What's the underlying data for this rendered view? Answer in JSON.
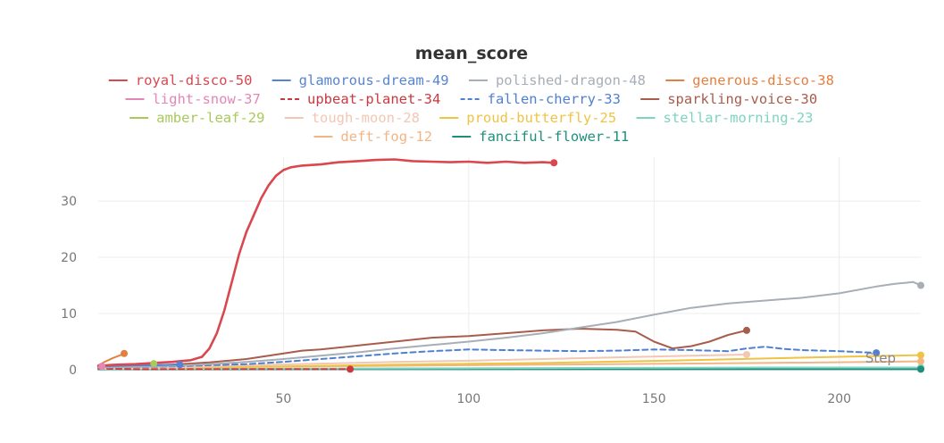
{
  "chart_data": {
    "type": "line",
    "title": "mean_score",
    "xlabel": "Step",
    "ylabel": "",
    "xlim": [
      0,
      222
    ],
    "ylim": [
      0,
      37
    ],
    "x_ticks": [
      50,
      100,
      150,
      200
    ],
    "y_ticks": [
      0,
      10,
      20,
      30
    ],
    "grid": true,
    "legend_position": "top",
    "series": [
      {
        "name": "royal-disco-50",
        "color": "#d9474f",
        "dash": "solid",
        "x": [
          0,
          5,
          10,
          15,
          20,
          25,
          28,
          30,
          32,
          34,
          36,
          38,
          40,
          42,
          44,
          46,
          48,
          50,
          52,
          55,
          60,
          65,
          70,
          75,
          80,
          85,
          90,
          95,
          100,
          105,
          110,
          115,
          120,
          123
        ],
        "y": [
          0.7,
          0.9,
          1.0,
          1.2,
          1.4,
          1.7,
          2.3,
          3.8,
          6.5,
          10.5,
          15.5,
          20.5,
          24.5,
          27.5,
          30.5,
          32.8,
          34.5,
          35.5,
          36.0,
          36.3,
          36.5,
          36.9,
          37.1,
          37.3,
          37.4,
          37.1,
          37.0,
          36.9,
          37.0,
          36.8,
          37.0,
          36.8,
          36.9,
          36.8
        ]
      },
      {
        "name": "glamorous-dream-49",
        "color": "#5584d4",
        "dash": "solid",
        "x": [
          0,
          5,
          10,
          15,
          20,
          22
        ],
        "y": [
          0.6,
          0.7,
          0.8,
          0.8,
          0.9,
          0.9
        ]
      },
      {
        "name": "polished-dragon-48",
        "color": "#a7aeb6",
        "dash": "solid",
        "x": [
          0,
          10,
          20,
          30,
          40,
          50,
          60,
          70,
          80,
          90,
          100,
          110,
          120,
          130,
          140,
          150,
          160,
          170,
          180,
          190,
          200,
          210,
          215,
          220,
          222
        ],
        "y": [
          0.4,
          0.5,
          0.7,
          1.0,
          1.4,
          1.9,
          2.5,
          3.1,
          3.8,
          4.4,
          5.0,
          5.7,
          6.5,
          7.5,
          8.5,
          9.8,
          11.0,
          11.8,
          12.3,
          12.8,
          13.6,
          14.8,
          15.3,
          15.6,
          15.0
        ]
      },
      {
        "name": "generous-disco-38",
        "color": "#e57f3f",
        "dash": "solid",
        "x": [
          0,
          2,
          4,
          6,
          7
        ],
        "y": [
          0.8,
          1.5,
          2.1,
          2.6,
          2.9
        ]
      },
      {
        "name": "light-snow-37",
        "color": "#e387b8",
        "dash": "solid",
        "x": [
          0,
          1
        ],
        "y": [
          0.6,
          0.6
        ]
      },
      {
        "name": "upbeat-planet-34",
        "color": "#c9393f",
        "dash": "dashed",
        "x": [
          0,
          10,
          20,
          30,
          40,
          50,
          60,
          68
        ],
        "y": [
          0.2,
          0.1,
          0.1,
          0.1,
          0.1,
          0.1,
          0.1,
          0.1
        ]
      },
      {
        "name": "fallen-cherry-33",
        "color": "#4f7fd1",
        "dash": "dashed",
        "x": [
          0,
          20,
          40,
          50,
          60,
          70,
          80,
          90,
          100,
          110,
          120,
          130,
          140,
          150,
          160,
          170,
          175,
          180,
          185,
          190,
          200,
          210
        ],
        "y": [
          0.3,
          0.6,
          1.0,
          1.4,
          1.9,
          2.4,
          2.9,
          3.3,
          3.6,
          3.5,
          3.4,
          3.3,
          3.4,
          3.6,
          3.5,
          3.3,
          3.8,
          4.1,
          3.7,
          3.5,
          3.3,
          3.0
        ]
      },
      {
        "name": "sparkling-voice-30",
        "color": "#a85c4c",
        "dash": "solid",
        "x": [
          0,
          20,
          30,
          40,
          50,
          55,
          60,
          70,
          80,
          90,
          100,
          110,
          120,
          130,
          140,
          145,
          150,
          155,
          160,
          165,
          170,
          175
        ],
        "y": [
          0.5,
          0.9,
          1.3,
          1.9,
          2.9,
          3.4,
          3.6,
          4.3,
          5.0,
          5.7,
          6.0,
          6.5,
          7.0,
          7.3,
          7.1,
          6.8,
          5.0,
          3.8,
          4.2,
          5.0,
          6.2,
          7.0
        ]
      },
      {
        "name": "amber-leaf-29",
        "color": "#a9c95c",
        "dash": "solid",
        "x": [
          0,
          5,
          10,
          15
        ],
        "y": [
          0.6,
          0.7,
          0.9,
          1.1
        ]
      },
      {
        "name": "tough-moon-28",
        "color": "#f2c7b3",
        "dash": "solid",
        "x": [
          0,
          20,
          40,
          60,
          80,
          100,
          120,
          140,
          160,
          175
        ],
        "y": [
          0.2,
          0.4,
          0.8,
          1.1,
          1.4,
          1.6,
          1.9,
          2.2,
          2.5,
          2.7
        ]
      },
      {
        "name": "proud-butterfly-25",
        "color": "#efc343",
        "dash": "solid",
        "x": [
          0,
          40,
          80,
          120,
          160,
          200,
          222
        ],
        "y": [
          0.2,
          0.5,
          0.9,
          1.2,
          1.7,
          2.3,
          2.6
        ]
      },
      {
        "name": "stellar-morning-23",
        "color": "#7fd3c0",
        "dash": "solid",
        "x": [
          0,
          60,
          120,
          180,
          222
        ],
        "y": [
          0.1,
          0.2,
          0.3,
          0.4,
          0.4
        ]
      },
      {
        "name": "deft-fog-12",
        "color": "#f2b584",
        "dash": "solid",
        "x": [
          0,
          60,
          120,
          180,
          222
        ],
        "y": [
          0.3,
          0.6,
          0.9,
          1.2,
          1.5
        ]
      },
      {
        "name": "fanciful-flower-11",
        "color": "#1f8f7d",
        "dash": "solid",
        "x": [
          0,
          60,
          120,
          180,
          222
        ],
        "y": [
          0.05,
          0.1,
          0.1,
          0.1,
          0.1
        ]
      }
    ]
  }
}
